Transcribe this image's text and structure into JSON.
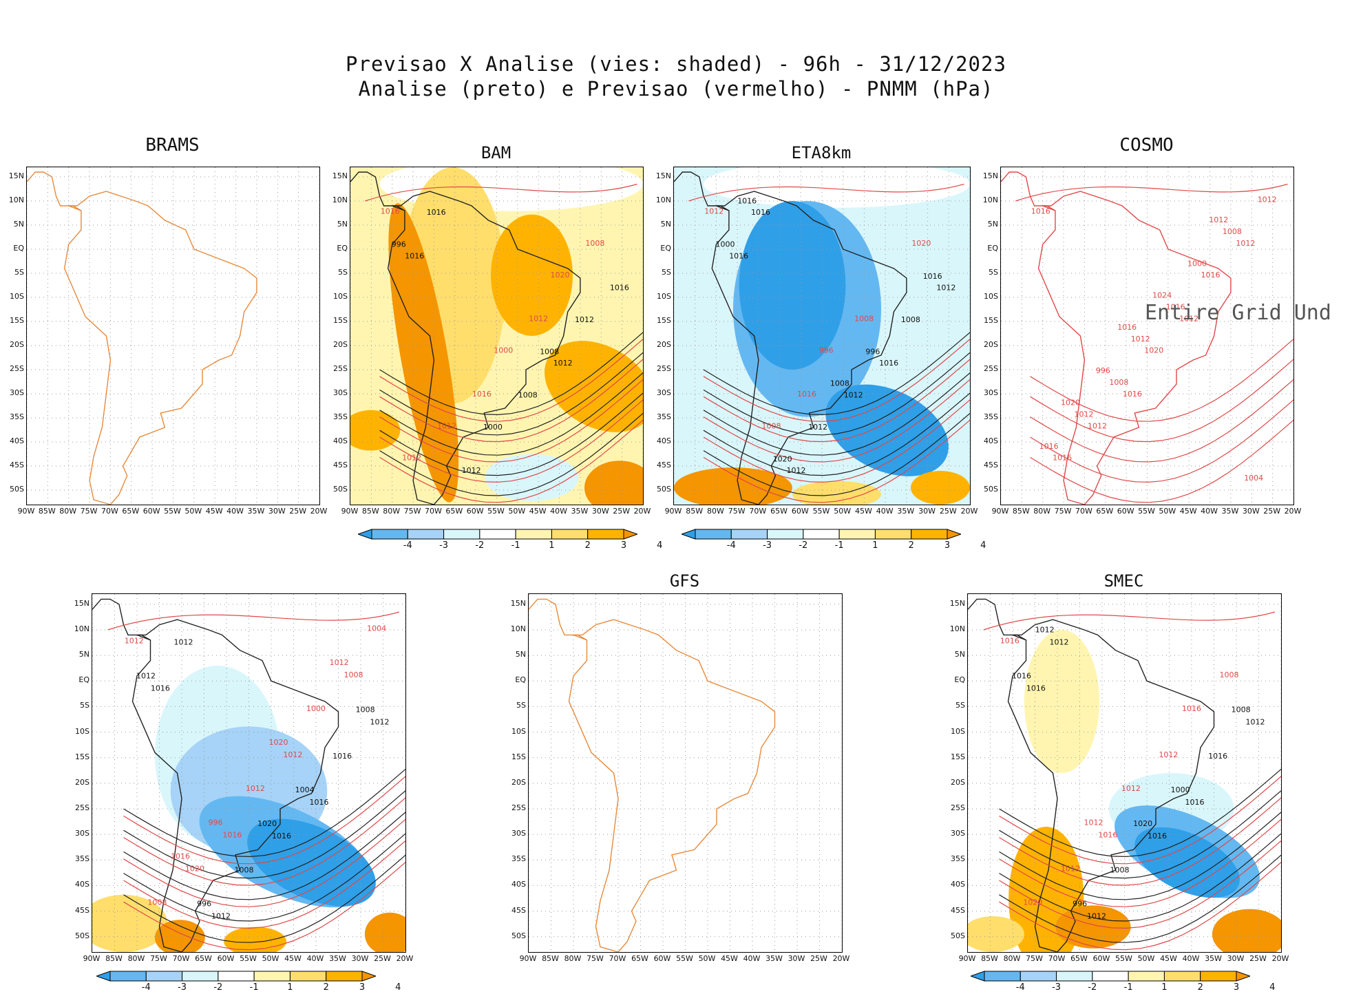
{
  "header": {
    "line1": "Previsao X Analise (vies: shaded) - 96h - 31/12/2023",
    "line2": "Analise (preto) e Previsao (vermelho) - PNMM (hPa)"
  },
  "chart_data": {
    "type": "heatmap",
    "title": "Previsao X Analise (vies: shaded) - 96h - 31/12/2023",
    "subtitle": "Analise (preto) e Previsao (vermelho) - PNMM (hPa)",
    "lat_ticks": [
      "15N",
      "10N",
      "5N",
      "EQ",
      "5S",
      "10S",
      "15S",
      "20S",
      "25S",
      "30S",
      "35S",
      "40S",
      "45S",
      "50S"
    ],
    "lon_ticks": [
      "90W",
      "85W",
      "80W",
      "75W",
      "70W",
      "65W",
      "60W",
      "55W",
      "50W",
      "45W",
      "40W",
      "35W",
      "30W",
      "25W",
      "20W"
    ],
    "legend": {
      "values": [
        "-4",
        "-3",
        "-2",
        "-1",
        "1",
        "2",
        "3",
        "4"
      ],
      "colors": [
        "#2f9fe8",
        "#63b8f2",
        "#a6d3f7",
        "#d9f6fb",
        "#ffffff",
        "#fff5b0",
        "#ffde6b",
        "#ffb300",
        "#f59500"
      ]
    },
    "panels": [
      {
        "name": "BRAMS",
        "field": "none",
        "analysis_labels": [],
        "forecast_labels": []
      },
      {
        "name": "BAM",
        "field": "positive",
        "analysis_labels": [
          "1016",
          "1012",
          "1012",
          "1016",
          "1008",
          "1016",
          "1012",
          "1000",
          "996",
          "1008"
        ],
        "forecast_labels": [
          "1016",
          "1016",
          "1012",
          "1012",
          "1008",
          "1000",
          "1012",
          "1020"
        ]
      },
      {
        "name": "ETA8km",
        "field": "negative",
        "analysis_labels": [
          "1016",
          "1016",
          "1012",
          "1012",
          "1012",
          "1016",
          "1008",
          "1012",
          "1000",
          "996",
          "1020",
          "1016",
          "1008",
          "1016"
        ],
        "forecast_labels": [
          "1016",
          "1012",
          "1008",
          "1008",
          "1020",
          "996"
        ]
      },
      {
        "name": "COSMO",
        "field": "none",
        "undefined_text": "Entire Grid Und",
        "analysis_labels": [],
        "forecast_labels": [
          "1016",
          "1016",
          "1012",
          "1012",
          "1012",
          "1020",
          "1016",
          "1016",
          "1008",
          "1012",
          "1016",
          "1012",
          "1008",
          "1012",
          "1016",
          "1000",
          "996",
          "1004",
          "1024",
          "1020",
          "1012",
          "1016"
        ]
      },
      {
        "name": "",
        "field": "mixed-negative",
        "analysis_labels": [
          "1016",
          "1016",
          "1012",
          "1012",
          "1016",
          "1012",
          "1016",
          "1008",
          "1012",
          "1004",
          "996",
          "1008",
          "1020"
        ],
        "forecast_labels": [
          "1016",
          "1012",
          "1012",
          "1020",
          "1008",
          "1012",
          "1008",
          "1000",
          "996",
          "1004",
          "1020",
          "1016",
          "1012"
        ]
      },
      {
        "name": "GFS",
        "field": "none",
        "analysis_labels": [],
        "forecast_labels": []
      },
      {
        "name": "SMEC",
        "field": "mixed",
        "analysis_labels": [
          "1016",
          "1016",
          "1012",
          "1012",
          "1016",
          "1012",
          "1016",
          "1008",
          "1016",
          "1000",
          "996",
          "1008",
          "1020",
          "1012"
        ],
        "forecast_labels": [
          "1016",
          "1016",
          "1012",
          "1012",
          "1008",
          "1012",
          "1020",
          "1016",
          "1012"
        ]
      }
    ]
  }
}
